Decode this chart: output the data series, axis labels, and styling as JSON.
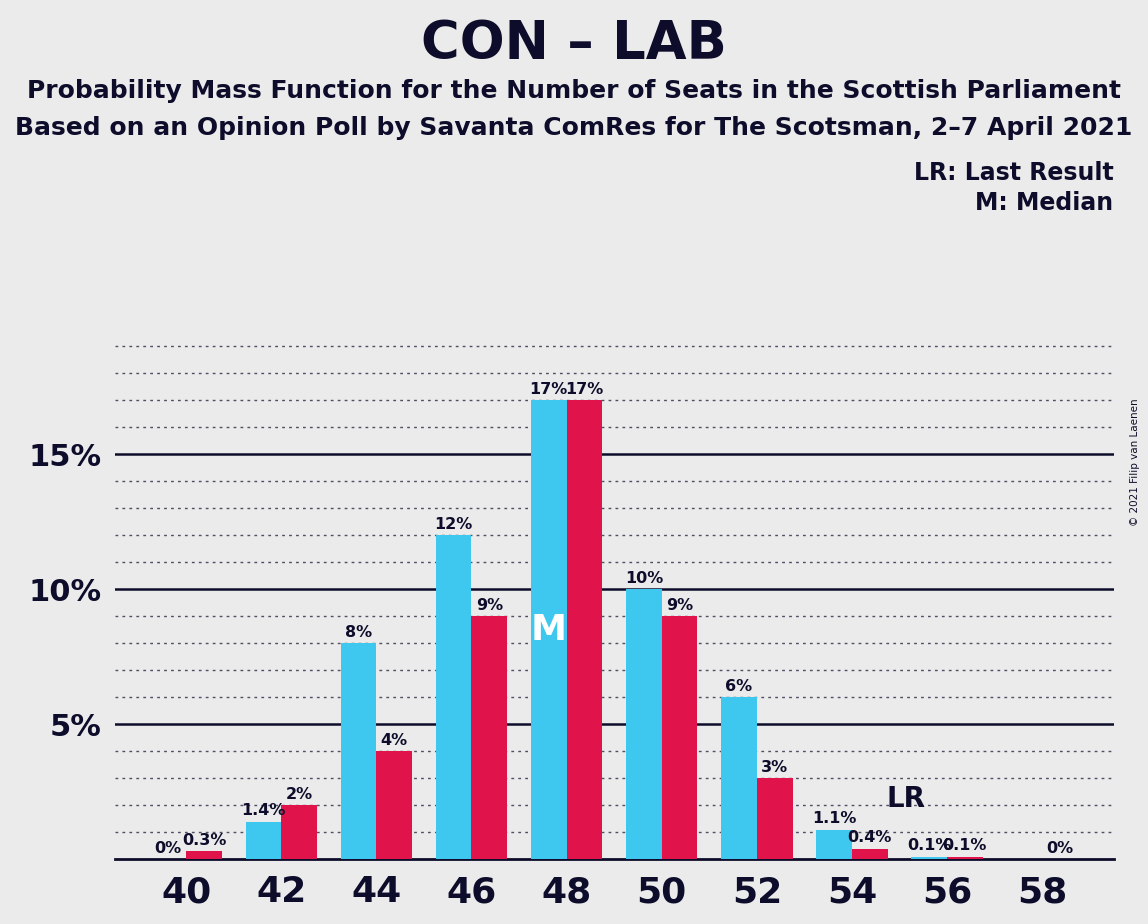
{
  "title": "CON – LAB",
  "subtitle1": "Probability Mass Function for the Number of Seats in the Scottish Parliament",
  "subtitle2": "Based on an Opinion Poll by Savanta ComRes for The Scotsman, 2–7 April 2021",
  "copyright": "© 2021 Filip van Laenen",
  "legend_lr": "LR: Last Result",
  "legend_m": "M: Median",
  "seats": [
    40,
    42,
    44,
    46,
    48,
    50,
    52,
    54,
    56,
    58
  ],
  "con_values": [
    0.0,
    1.4,
    8.0,
    12.0,
    17.0,
    10.0,
    6.0,
    1.1,
    0.1,
    0.0
  ],
  "lab_values": [
    0.3,
    2.0,
    4.0,
    9.0,
    17.0,
    9.0,
    3.0,
    0.4,
    0.1,
    0.0
  ],
  "con_labels": [
    "0%",
    "1.4%",
    "8%",
    "12%",
    "17%",
    "10%",
    "6%",
    "1.1%",
    "0.1%",
    ""
  ],
  "lab_labels": [
    "0.3%",
    "2%",
    "4%",
    "9%",
    "17%",
    "9%",
    "3%",
    "0.4%",
    "0.1%",
    "0%"
  ],
  "con_color": "#3EC8F0",
  "lab_color": "#E0134A",
  "median_seat": 48,
  "lr_seat": 54,
  "xtick_labels": [
    "40",
    "42",
    "44",
    "46",
    "48",
    "50",
    "52",
    "54",
    "56",
    "58"
  ],
  "xtick_positions": [
    40,
    42,
    44,
    46,
    48,
    50,
    52,
    54,
    56,
    58
  ],
  "ytick_values": [
    5,
    10,
    15
  ],
  "ylim": [
    0,
    19.5
  ],
  "background_color": "#EBEBEB",
  "title_fontsize": 38,
  "subtitle_fontsize": 18,
  "bar_width": 0.75,
  "text_color": "#0D0D2B"
}
